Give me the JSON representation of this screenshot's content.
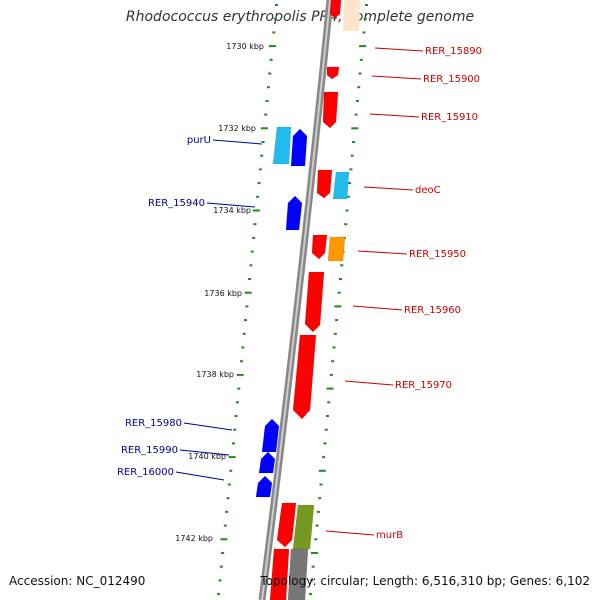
{
  "title": "Rhodococcus erythropolis PR4, complete genome",
  "accession": "Accession: NC_012490",
  "summary": "Topology: circular; Length: 6,516,310 bp; Genes: 6,102",
  "colors": {
    "forward": "#ff0000",
    "reverse": "#0000ff",
    "reverse_light": "#22bbee",
    "forward_orange": "#ff9900",
    "olive": "#779922",
    "grey": "#777777",
    "backbone": "#888888",
    "tick": "#228822",
    "forward_label": "#cc0000",
    "reverse_label": "#000099"
  },
  "scale_ticks": [
    {
      "kbp": 1730,
      "label": "1730 kbp"
    },
    {
      "kbp": 1732,
      "label": "1732 kbp"
    },
    {
      "kbp": 1734,
      "label": "1734 kbp"
    },
    {
      "kbp": 1736,
      "label": "1736 kbp"
    },
    {
      "kbp": 1738,
      "label": "1738 kbp"
    },
    {
      "kbp": 1740,
      "label": "1740 kbp"
    },
    {
      "kbp": 1742,
      "label": "1742 kbp"
    }
  ],
  "forward_labels": [
    "RER_15890",
    "RER_15900",
    "RER_15910",
    "deoC",
    "RER_15950",
    "RER_15960",
    "RER_15970",
    "murB"
  ],
  "reverse_labels": [
    "purU",
    "RER_15940",
    "RER_15980",
    "RER_15990",
    "RER_16000"
  ]
}
